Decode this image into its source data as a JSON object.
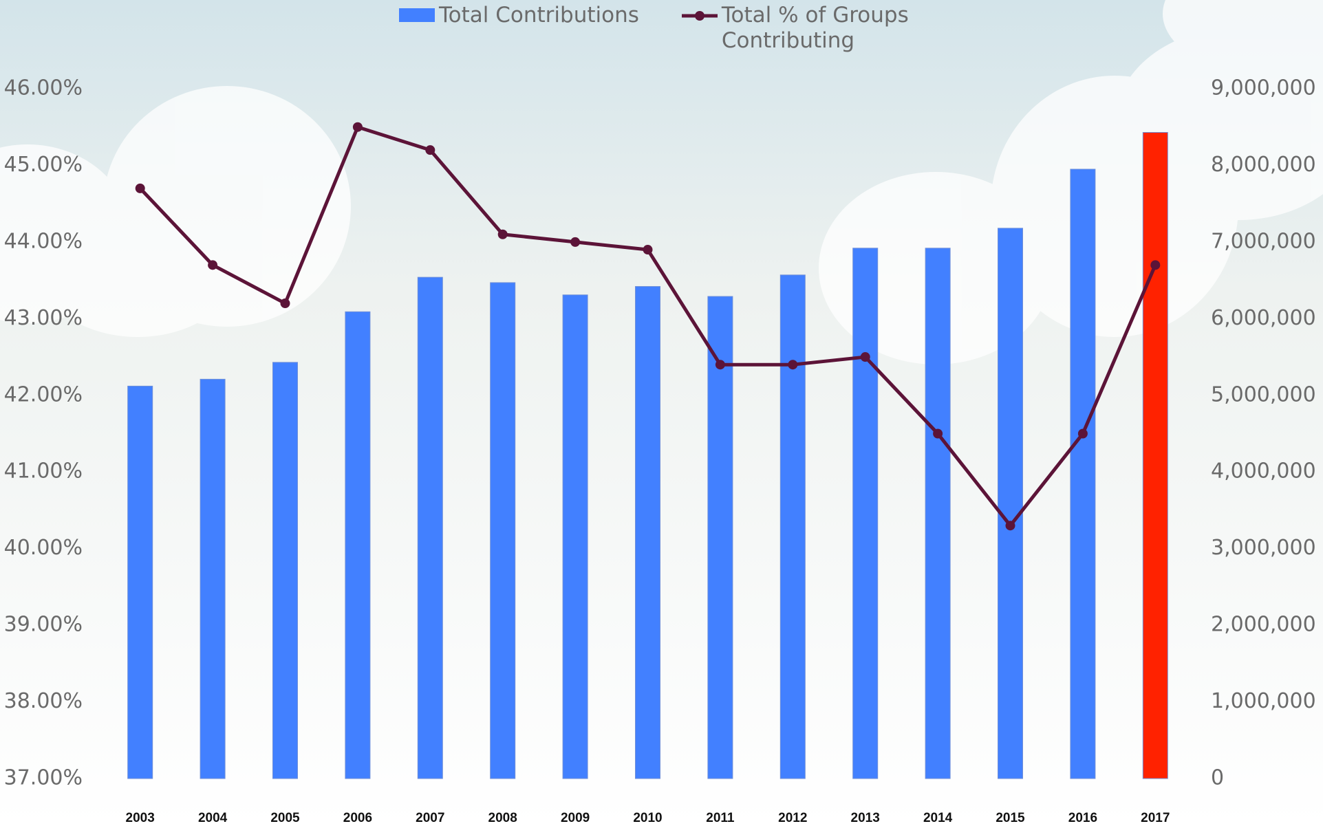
{
  "chart_data": {
    "type": "bar-line",
    "categories": [
      "2003",
      "2004",
      "2005",
      "2006",
      "2007",
      "2008",
      "2009",
      "2010",
      "2011",
      "2012",
      "2013",
      "2014",
      "2015",
      "2016",
      "2017"
    ],
    "series": [
      {
        "name": "Total Contributions",
        "type": "bar",
        "axis": "y2",
        "color": "#4280ff",
        "colors": [
          "#4280ff",
          "#4280ff",
          "#4280ff",
          "#4280ff",
          "#4280ff",
          "#4280ff",
          "#4280ff",
          "#4280ff",
          "#4280ff",
          "#4280ff",
          "#4280ff",
          "#4280ff",
          "#4280ff",
          "#4280ff",
          "#ff2200"
        ],
        "values": [
          5120000,
          5210000,
          5430000,
          6090000,
          6540000,
          6470000,
          6310000,
          6420000,
          6290000,
          6570000,
          6920000,
          6920000,
          7180000,
          7950000,
          8430000
        ]
      },
      {
        "name": "Total % of Groups Contributing",
        "type": "line",
        "axis": "y",
        "color": "#5c1438",
        "values": [
          44.7,
          43.7,
          43.2,
          45.5,
          45.2,
          44.1,
          44.0,
          43.9,
          42.4,
          42.4,
          42.5,
          41.5,
          40.3,
          41.5,
          43.7
        ]
      }
    ],
    "ylim": [
      37,
      46
    ],
    "yticks": [
      {
        "value": 37,
        "label": "37.00%"
      },
      {
        "value": 38,
        "label": "38.00%"
      },
      {
        "value": 39,
        "label": "39.00%"
      },
      {
        "value": 40,
        "label": "40.00%"
      },
      {
        "value": 41,
        "label": "41.00%"
      },
      {
        "value": 42,
        "label": "42.00%"
      },
      {
        "value": 43,
        "label": "43.00%"
      },
      {
        "value": 44,
        "label": "44.00%"
      },
      {
        "value": 45,
        "label": "45.00%"
      },
      {
        "value": 46,
        "label": "46.00%"
      }
    ],
    "y2lim": [
      0,
      9000000
    ],
    "y2ticks": [
      0,
      {
        "value": 1000000,
        "label": "1,000,000"
      },
      {
        "value": 2000000,
        "label": "2,000,000"
      },
      {
        "value": 3000000,
        "label": "3,000,000"
      },
      {
        "value": 4000000,
        "label": "4,000,000"
      },
      {
        "value": 5000000,
        "label": "5,000,000"
      },
      {
        "value": 6000000,
        "label": "6,000,000"
      },
      {
        "value": 7000000,
        "label": "7,000,000"
      },
      {
        "value": 8000000,
        "label": "8,000,000"
      },
      {
        "value": 9000000,
        "label": "9,000,000"
      }
    ],
    "grid": false,
    "legend": "top"
  }
}
